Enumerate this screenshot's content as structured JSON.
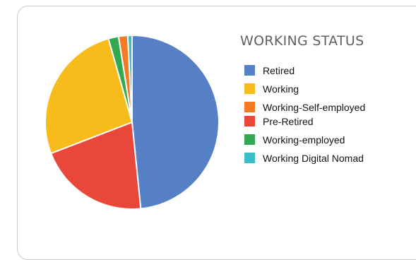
{
  "chart_data": {
    "type": "pie",
    "title": "WORKING STATUS",
    "series": [
      {
        "name": "Retired",
        "value": 48.5,
        "color": "#5580c6"
      },
      {
        "name": "Working",
        "value": 26.5,
        "color": "#f7bc1c"
      },
      {
        "name": "Working-Self-employed",
        "value": 1.7,
        "color": "#f47b24"
      },
      {
        "name": "Pre-Retired",
        "value": 20.8,
        "color": "#e8473a"
      },
      {
        "name": "Working-employed",
        "value": 1.9,
        "color": "#32a852"
      },
      {
        "name": "Working Digital Nomad",
        "value": 0.8,
        "color": "#3bbcc7"
      }
    ],
    "slice_order": [
      "Retired",
      "Pre-Retired",
      "Working",
      "Working-employed",
      "Working-Self-employed",
      "Working Digital Nomad"
    ],
    "legend_placement": "right"
  }
}
